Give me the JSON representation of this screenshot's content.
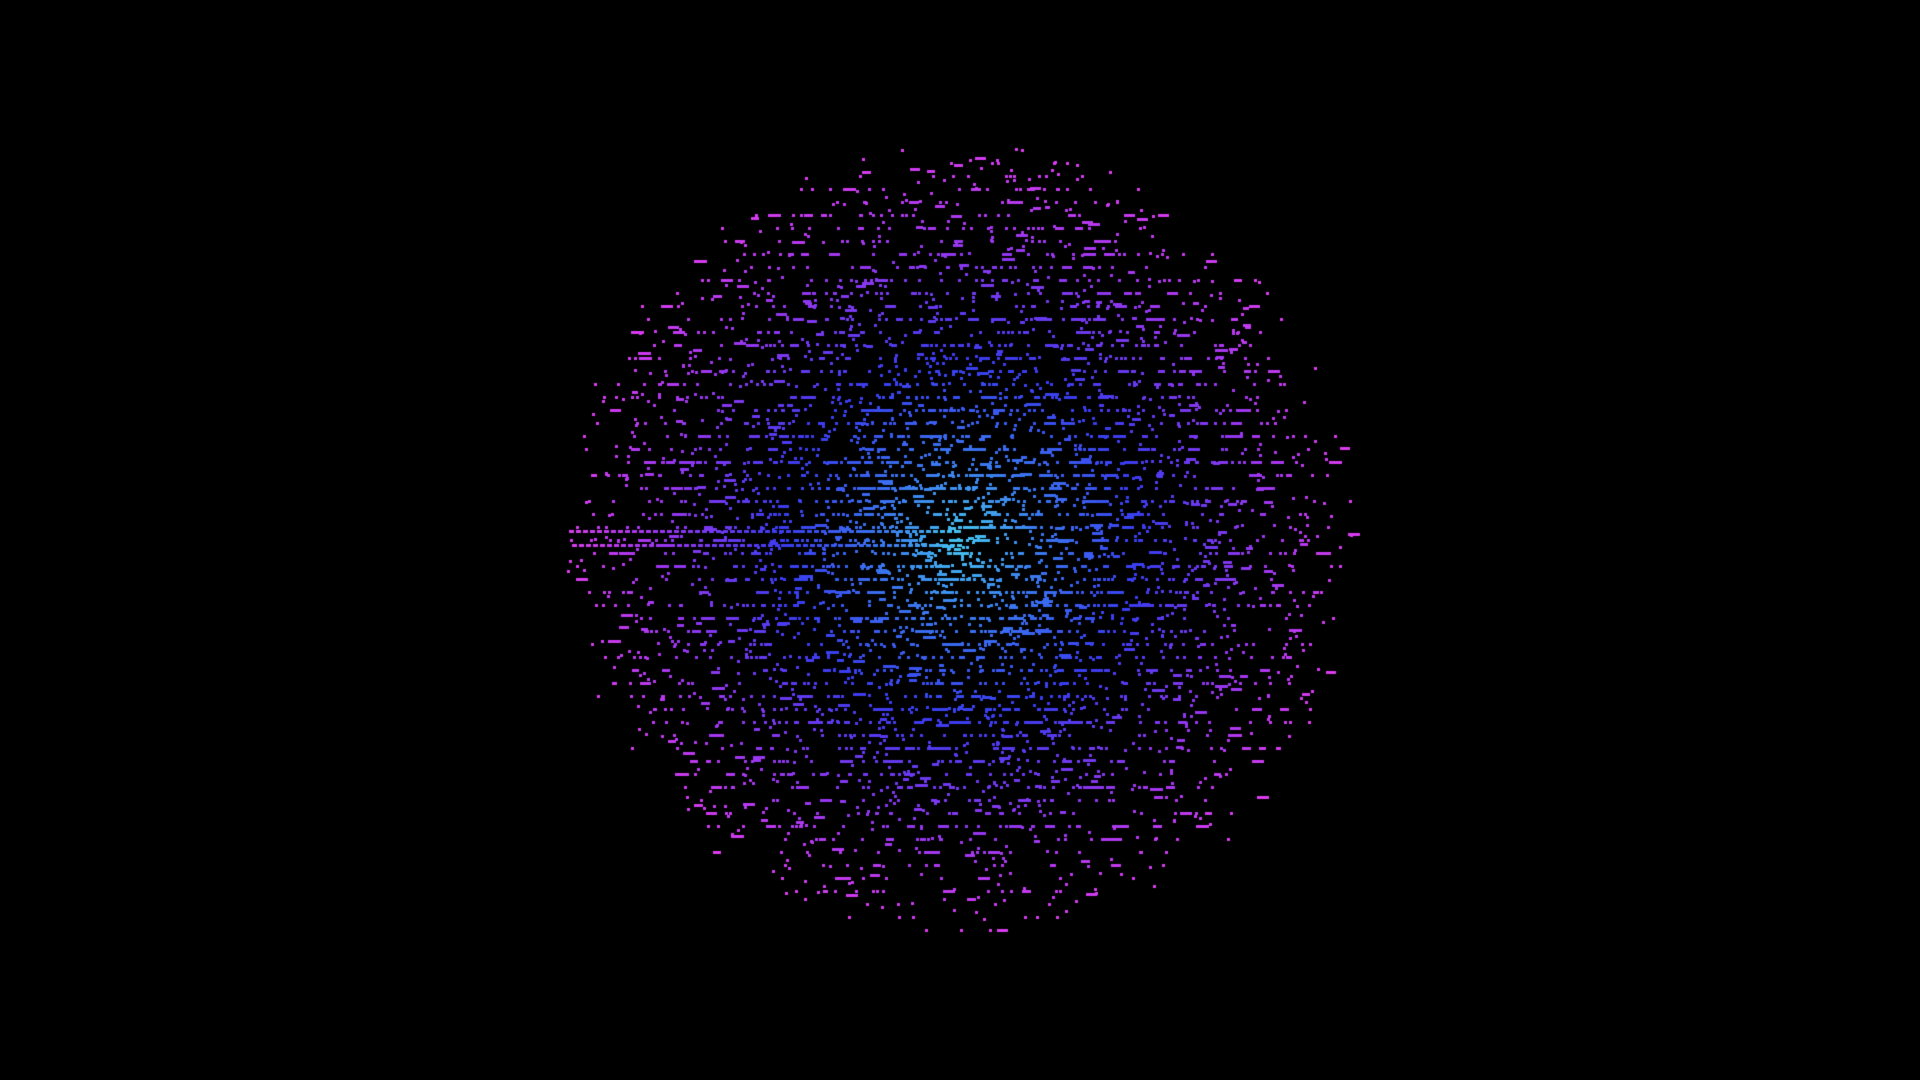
{
  "scene": {
    "background": "#000000",
    "subject": "particle-sphere",
    "palette": {
      "center": "#46c8f0",
      "inner": "#3a78f0",
      "mid": "#3a3cf0",
      "outer": "#9a36f0",
      "edge": "#e03cf0"
    }
  }
}
